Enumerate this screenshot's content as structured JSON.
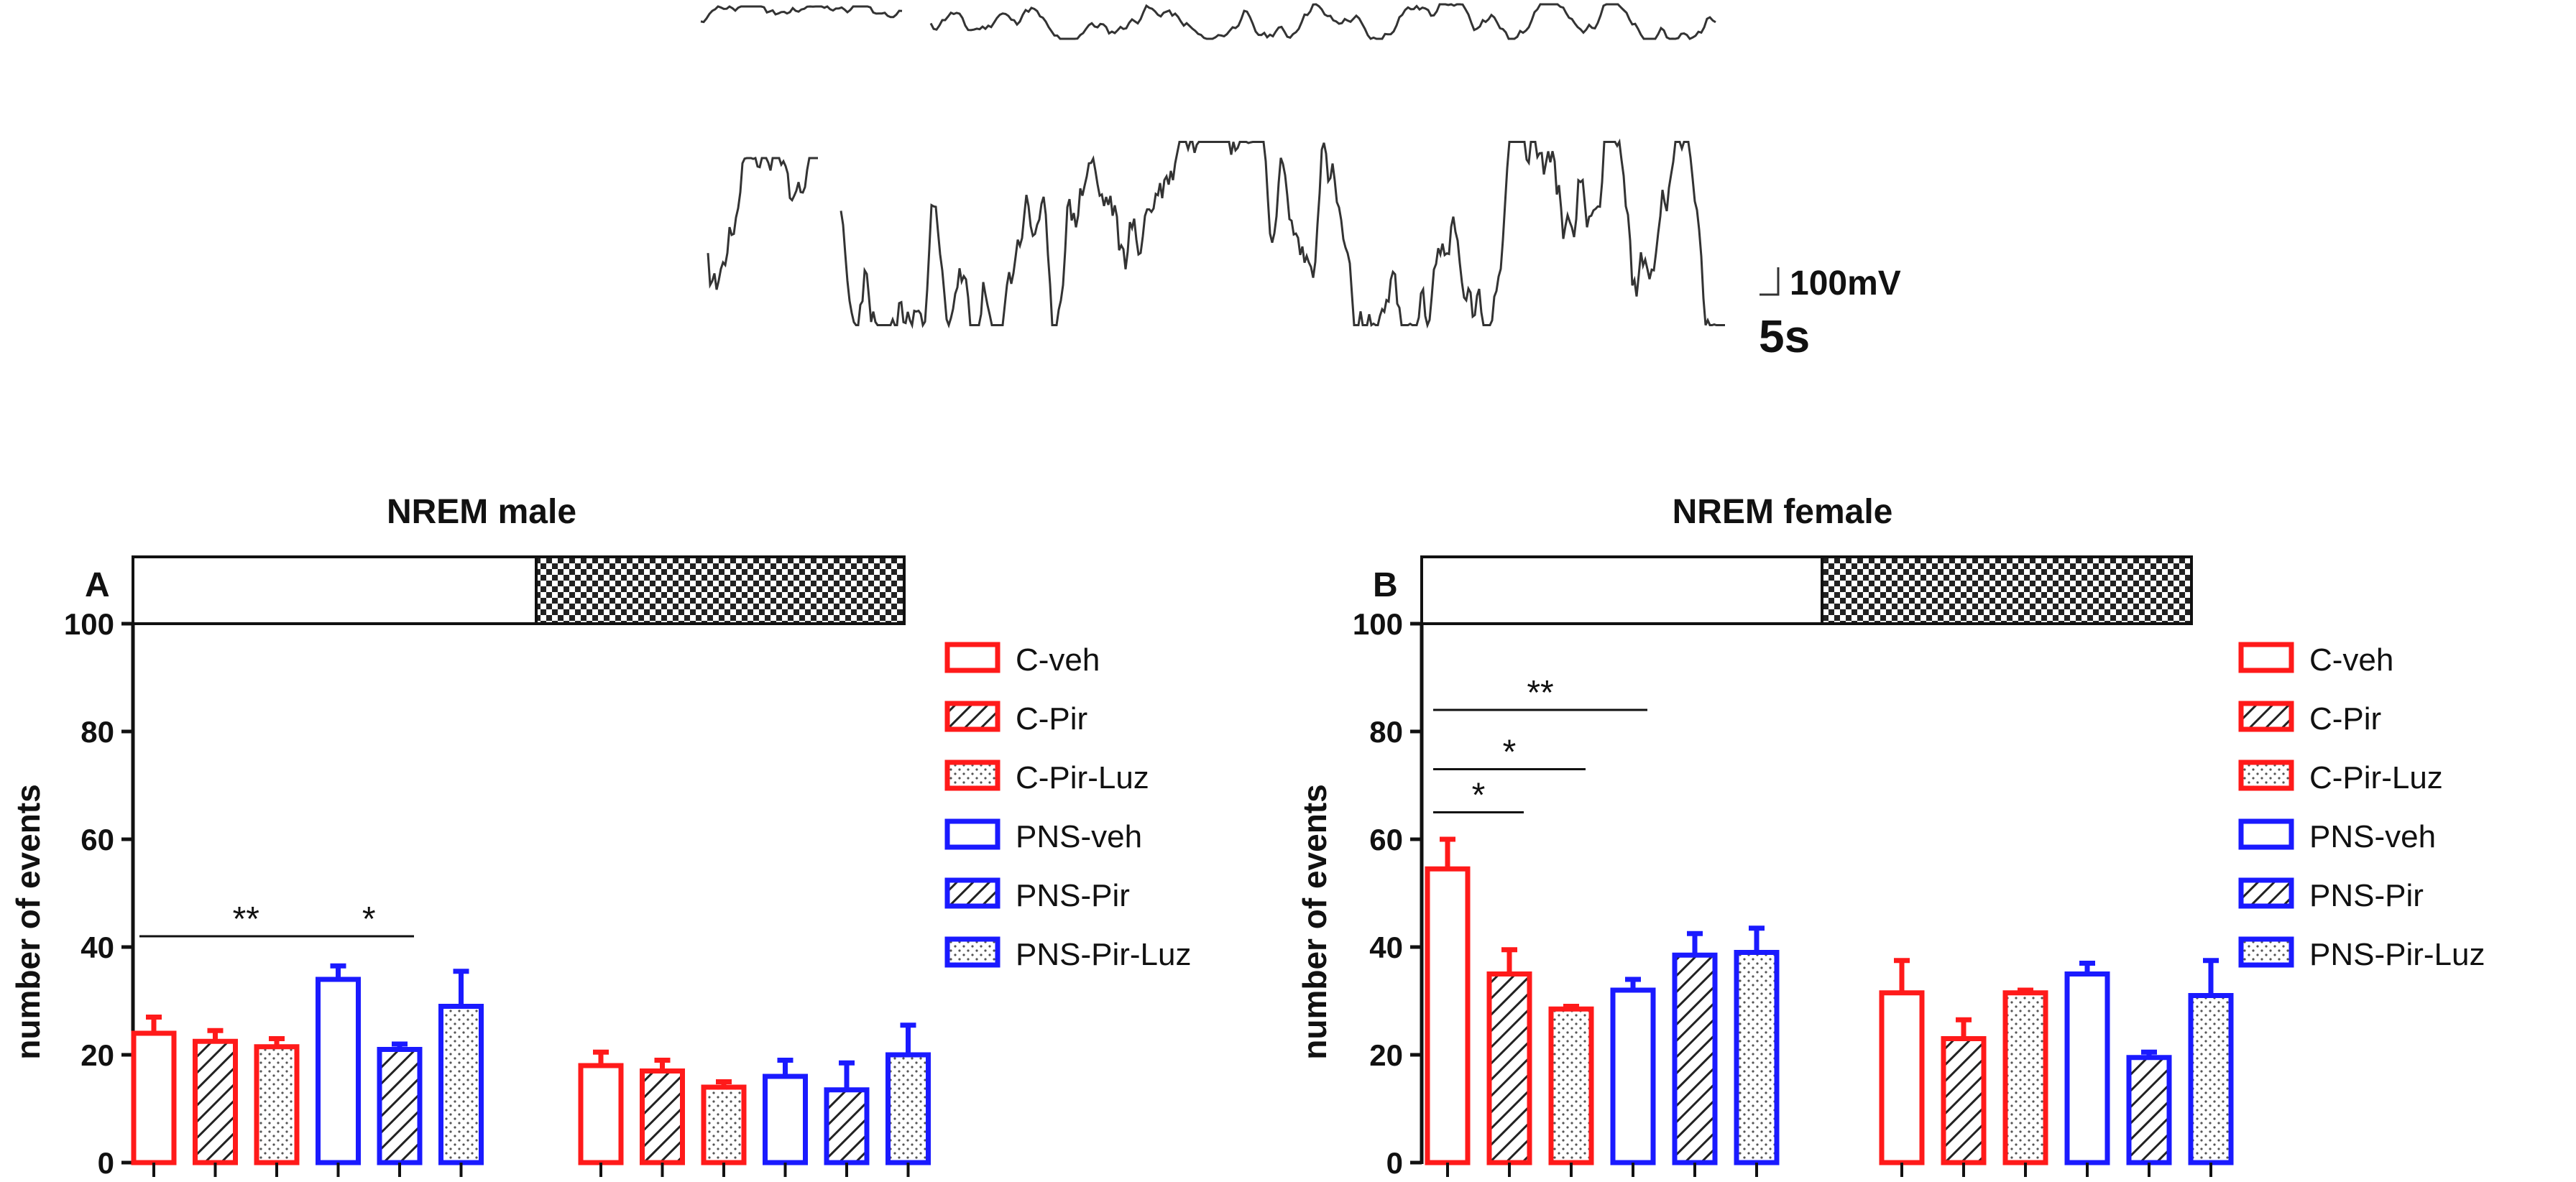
{
  "eeg": {
    "scale_voltage_label": "100mV",
    "scale_time_label": "5s"
  },
  "legend": [
    {
      "label": "C-veh",
      "color": "#ff1a1a",
      "pattern": "open"
    },
    {
      "label": "C-Pir",
      "color": "#ff1a1a",
      "pattern": "hatch"
    },
    {
      "label": "C-Pir-Luz",
      "color": "#ff1a1a",
      "pattern": "dots"
    },
    {
      "label": "PNS-veh",
      "color": "#1a1aff",
      "pattern": "open"
    },
    {
      "label": "PNS-Pir",
      "color": "#1a1aff",
      "pattern": "hatch"
    },
    {
      "label": "PNS-Pir-Luz",
      "color": "#1a1aff",
      "pattern": "dots"
    }
  ],
  "chart_data": [
    {
      "type": "bar",
      "panel_letter": "A",
      "title": "NREM male",
      "ylabel": "number of events",
      "xlabel": "",
      "ylim": [
        0,
        100
      ],
      "yticks": [
        "0",
        "20",
        "40",
        "60",
        "80",
        "100"
      ],
      "phases": [
        "light",
        "dark"
      ],
      "groups": [
        "C-veh",
        "C-Pir",
        "C-Pir-Luz",
        "PNS-veh",
        "PNS-Pir",
        "PNS-Pir-Luz"
      ],
      "series": [
        {
          "phase": "light",
          "values": [
            24,
            22.5,
            21.5,
            34,
            21,
            29
          ],
          "errors": [
            3,
            2,
            1.5,
            2.5,
            1,
            6.5
          ]
        },
        {
          "phase": "dark",
          "values": [
            18,
            17,
            14,
            16,
            13.5,
            20
          ],
          "errors": [
            2.5,
            2,
            1,
            3,
            5,
            5.5
          ]
        }
      ],
      "significance": [
        {
          "label": "**",
          "from": 0,
          "to": 3,
          "y": 42
        },
        {
          "label": "*",
          "from": 3,
          "to": 4,
          "y": 42
        }
      ]
    },
    {
      "type": "bar",
      "panel_letter": "B",
      "title": "NREM female",
      "ylabel": "number of events",
      "xlabel": "",
      "ylim": [
        0,
        100
      ],
      "yticks": [
        "0",
        "20",
        "40",
        "60",
        "80",
        "100"
      ],
      "phases": [
        "light",
        "dark"
      ],
      "groups": [
        "C-veh",
        "C-Pir",
        "C-Pir-Luz",
        "PNS-veh",
        "PNS-Pir",
        "PNS-Pir-Luz"
      ],
      "series": [
        {
          "phase": "light",
          "values": [
            54.5,
            35,
            28.5,
            32,
            38.5,
            39
          ],
          "errors": [
            5.5,
            4.5,
            0.5,
            2,
            4,
            4.5
          ]
        },
        {
          "phase": "dark",
          "values": [
            31.5,
            23,
            31.5,
            35,
            19.5,
            31
          ],
          "errors": [
            6,
            3.5,
            0.5,
            2,
            1,
            6.5
          ]
        }
      ],
      "significance": [
        {
          "label": "**",
          "from": 0,
          "to": 3,
          "y": 84
        },
        {
          "label": "*",
          "from": 0,
          "to": 2,
          "y": 73
        },
        {
          "label": "*",
          "from": 0,
          "to": 1,
          "y": 65
        }
      ]
    }
  ]
}
